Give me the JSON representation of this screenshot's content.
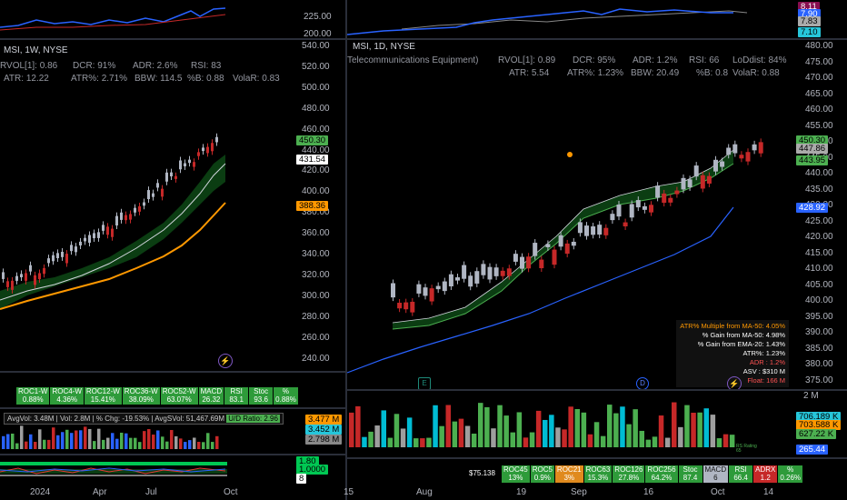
{
  "left": {
    "title": "MSI, 1W, NYSE",
    "stats_row1": [
      "RVOL[1]: 0.86",
      "DCR: 91%",
      "ADR: 2.6%",
      "RSI: 83"
    ],
    "stats_row2": [
      "ATR: 12.22",
      "ATR%: 2.71%",
      "BBW: 114.5",
      "%B: 0.88",
      "VolaR: 0.83"
    ],
    "top_axis": [
      "225.00",
      "200.00"
    ],
    "price_axis": [
      "540.00",
      "520.00",
      "500.00",
      "480.00",
      "460.00",
      "440.00",
      "420.00",
      "400.00",
      "380.00",
      "360.00",
      "340.00",
      "320.00",
      "300.00",
      "280.00",
      "260.00",
      "240.00"
    ],
    "labels": {
      "last": "450.30",
      "ema": "431.54",
      "ma": "388.36"
    },
    "roc_cells": [
      {
        "name": "ROC1-W",
        "value": "0.88%",
        "color": "green"
      },
      {
        "name": "ROC4-W",
        "value": "4.36%",
        "color": "green"
      },
      {
        "name": "ROC12-W",
        "value": "15.41%",
        "color": "green"
      },
      {
        "name": "ROC36-W",
        "value": "38.09%",
        "color": "green"
      },
      {
        "name": "ROC52-W",
        "value": "63.07%",
        "color": "green"
      },
      {
        "name": "MACD",
        "value": "26.32",
        "color": "green"
      },
      {
        "name": "RSI",
        "value": "83.1",
        "color": "green"
      },
      {
        "name": "Stoc",
        "value": "93.6",
        "color": "green"
      },
      {
        "name": "%",
        "value": "0.88%",
        "color": "green"
      }
    ],
    "vol_info": {
      "avgvol": "AvgVol: 3.48M",
      "vol": "Vol: 2.8M",
      "chg": "% Chg: -19.53%",
      "avgdollar": "AvgSVol: 51,467.69M",
      "ud": "U/D Ratio: 2.96"
    },
    "vol_labels": {
      "a": "3.477 M",
      "b": "3.452 M",
      "c": "2.798 M"
    },
    "osc_labels": {
      "a": "1.80",
      "b": "1.0000",
      "c": "8"
    },
    "x_axis": [
      "2024",
      "Apr",
      "Jul",
      "Oct"
    ]
  },
  "right": {
    "title": "MSI, 1D, NYSE",
    "stats_row1": [
      "Telecommunications Equipment)",
      "RVOL[1]: 0.89",
      "DCR: 95%",
      "ADR: 1.2%",
      "RSI: 66",
      "LoDdist: 84%"
    ],
    "stats_row2": [
      "ATR: 5.54",
      "ATR%: 1.23%",
      "BBW: 20.49",
      "%B: 0.8",
      "VolaR: 0.88"
    ],
    "top_labels": {
      "a": "8.11",
      "b": "7.90",
      "c": "7.83",
      "d": "7.10"
    },
    "price_axis": [
      "480.00",
      "475.00",
      "470.00",
      "465.00",
      "460.00",
      "455.00",
      "450.00",
      "445.00",
      "440.00",
      "435.00",
      "430.00",
      "425.00",
      "420.00",
      "415.00",
      "410.00",
      "405.00",
      "400.00",
      "395.00",
      "390.00",
      "385.00",
      "380.00",
      "375.00"
    ],
    "labels": {
      "last": "450.30",
      "ma10": "447.86",
      "ema": "443.95",
      "ma50": "428.92"
    },
    "infobox": [
      {
        "text": "ATR% Multiple from MA-50: 4.05%",
        "color": "#ff9800"
      },
      {
        "text": "% Gain from MA-50: 4.98%",
        "color": "#ffffff"
      },
      {
        "text": "% Gain from EMA-20: 1.43%",
        "color": "#ffffff"
      },
      {
        "text": "ATR%: 1.23%",
        "color": "#ffffff"
      },
      {
        "text": "ADR : 1.2%",
        "color": "#ff5252"
      },
      {
        "text": "ASV : $310 M",
        "color": "#ffffff"
      },
      {
        "text": "Float: 166 M",
        "color": "#ff5252"
      }
    ],
    "events": {
      "e": "E",
      "d": "D"
    },
    "vol_axis_top": "2 M",
    "vol_labels": {
      "a": "706.189 K",
      "b": "703.588 K",
      "c": "627.22 K",
      "d": "265.44"
    },
    "rs_rating": "RS Rating\n65",
    "dollar": "$75.138",
    "roc_cells": [
      {
        "name": "ROC45",
        "value": "13%",
        "color": "green"
      },
      {
        "name": "ROC5",
        "value": "0.9%",
        "color": "green"
      },
      {
        "name": "ROC21",
        "value": "3%",
        "color": "orange"
      },
      {
        "name": "ROC63",
        "value": "15.3%",
        "color": "green"
      },
      {
        "name": "ROC126",
        "value": "27.8%",
        "color": "green"
      },
      {
        "name": "ROC256",
        "value": "64.2%",
        "color": "green"
      },
      {
        "name": "Stoc",
        "value": "87.4",
        "color": "green"
      },
      {
        "name": "MACD",
        "value": "6",
        "color": "grey"
      },
      {
        "name": "RSI",
        "value": "66.4",
        "color": "green"
      },
      {
        "name": "ADRX",
        "value": "1.2",
        "color": "red"
      },
      {
        "name": "%",
        "value": "0.26%",
        "color": "green"
      }
    ],
    "x_axis": [
      "15",
      "Aug",
      "19",
      "Sep",
      "16",
      "Oct",
      "14"
    ]
  },
  "colors": {
    "up": "#b0b6c3",
    "down": "#c62828",
    "ema": "#d1d4dc",
    "ma_orange": "#ff9800",
    "ma_blue": "#2962ff",
    "cloud": "#0b3d12",
    "green": "#4caf50"
  }
}
